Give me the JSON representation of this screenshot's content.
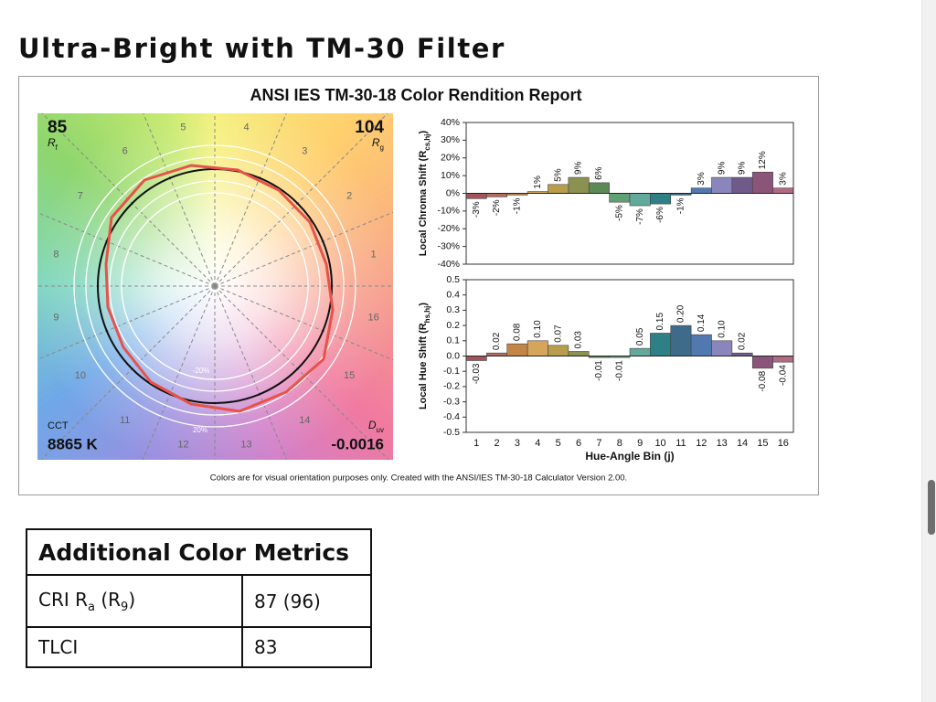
{
  "heading": "Ultra-Bright with TM-30 Filter",
  "report": {
    "title": "ANSI IES TM-30-18 Color Rendition Report",
    "vector_graphic": {
      "rf": {
        "value": "85",
        "symbol": "R",
        "subscript": "f"
      },
      "rg": {
        "value": "104",
        "symbol": "R",
        "subscript": "g"
      },
      "cct": {
        "label": "CCT",
        "value": "8865 K"
      },
      "duv": {
        "symbol": "D",
        "subscript": "uv",
        "value": "-0.0016"
      },
      "bin_labels": [
        1,
        2,
        3,
        4,
        5,
        6,
        7,
        8,
        9,
        10,
        11,
        12,
        13,
        14,
        15,
        16
      ],
      "ring_labels": [
        "-20%",
        "20%"
      ]
    },
    "footnote": "Colors are for visual orientation purposes only. Created with the ANSI/IES TM-30-18 Calculator Version 2.00."
  },
  "chart_data": [
    {
      "type": "bar",
      "y_label": [
        "Local Chroma Shift (R",
        "cs,hj",
        ")"
      ],
      "values": [
        -3,
        -2,
        -1,
        1,
        5,
        9,
        6,
        -5,
        -7,
        -6,
        -1,
        3,
        9,
        9,
        12,
        3
      ],
      "value_labels": [
        "-3%",
        "-2%",
        "-1%",
        "1%",
        "5%",
        "9%",
        "6%",
        "-5%",
        "-7%",
        "-6%",
        "-1%",
        "3%",
        "9%",
        "9%",
        "12%",
        "3%"
      ],
      "colors": [
        "#a3545b",
        "#b36b5f",
        "#c28546",
        "#d5a55c",
        "#b79d4c",
        "#8b9150",
        "#5c8a55",
        "#60a075",
        "#62a99c",
        "#2f7f86",
        "#3e6b8a",
        "#5278b0",
        "#8a86bb",
        "#705a8a",
        "#8b557a",
        "#b06a82"
      ],
      "ylim": [
        -40,
        40
      ],
      "yticks": [
        {
          "value": 40,
          "label": "40%"
        },
        {
          "value": 30,
          "label": "30%"
        },
        {
          "value": 20,
          "label": "20%"
        },
        {
          "value": 10,
          "label": "10%"
        },
        {
          "value": 0,
          "label": "0%"
        },
        {
          "value": -10,
          "label": "-10%"
        },
        {
          "value": -20,
          "label": "-20%"
        },
        {
          "value": -30,
          "label": "-30%"
        },
        {
          "value": -40,
          "label": "-40%"
        }
      ]
    },
    {
      "type": "bar",
      "y_label": [
        "Local Hue Shift (R",
        "hs,hj",
        ")"
      ],
      "x_label": "Hue-Angle Bin (j)",
      "categories": [
        1,
        2,
        3,
        4,
        5,
        6,
        7,
        8,
        9,
        10,
        11,
        12,
        13,
        14,
        15,
        16
      ],
      "values": [
        -0.03,
        0.02,
        0.08,
        0.1,
        0.07,
        0.03,
        -0.01,
        -0.01,
        0.05,
        0.15,
        0.2,
        0.14,
        0.1,
        0.02,
        -0.08,
        -0.04
      ],
      "value_labels": [
        "-0.03",
        "0.02",
        "0.08",
        "0.10",
        "0.07",
        "0.03",
        "-0.01",
        "-0.01",
        "0.05",
        "0.15",
        "0.20",
        "0.14",
        "0.10",
        "0.02",
        "-0.08",
        "-0.04"
      ],
      "colors": [
        "#a3545b",
        "#b36b5f",
        "#c28546",
        "#d5a55c",
        "#b79d4c",
        "#8b9150",
        "#5c8a55",
        "#60a075",
        "#62a99c",
        "#2f7f86",
        "#3e6b8a",
        "#5278b0",
        "#8a86bb",
        "#705a8a",
        "#8b557a",
        "#b06a82"
      ],
      "ylim": [
        -0.5,
        0.5
      ],
      "yticks": [
        0.5,
        0.4,
        0.3,
        0.2,
        0.1,
        {
          "value": 0,
          "label": "0.0"
        },
        -0.1,
        -0.2,
        -0.3,
        -0.4,
        -0.5
      ]
    }
  ],
  "table": {
    "title": "Additional Color Metrics",
    "rows": [
      [
        [
          "CRI R",
          "a",
          " (R",
          "9",
          ")"
        ],
        [
          "87 (96)"
        ]
      ],
      [
        [
          "TLCI"
        ],
        [
          "83"
        ]
      ]
    ]
  }
}
